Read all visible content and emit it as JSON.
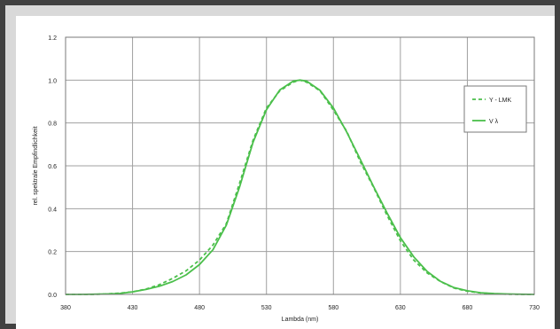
{
  "chart_data": {
    "type": "line",
    "title": "",
    "xlabel": "Lambda (nm)",
    "ylabel": "rel. spektrale Empfindlichkeit",
    "xlim": [
      380,
      730
    ],
    "ylim": [
      0,
      1.2
    ],
    "x_ticks": [
      "380",
      "430",
      "480",
      "530",
      "580",
      "630",
      "680",
      "730"
    ],
    "y_ticks": [
      "0.0",
      "0.2",
      "0.4",
      "0.6",
      "0.8",
      "1.0",
      "1.2"
    ],
    "grid": true,
    "legend_position": "right",
    "colors": {
      "line": "#4bbf4b",
      "grid": "#a0a0a0",
      "axis": "#7a7a7a"
    },
    "series": [
      {
        "name": "Y - LMK",
        "style": "dashed",
        "x": [
          380,
          390,
          400,
          410,
          420,
          430,
          440,
          450,
          460,
          470,
          480,
          490,
          500,
          510,
          520,
          530,
          540,
          550,
          555,
          560,
          570,
          580,
          590,
          600,
          610,
          620,
          630,
          640,
          650,
          660,
          670,
          680,
          690,
          700,
          710,
          720,
          730
        ],
        "values": [
          0.0,
          0.0,
          0.0,
          0.002,
          0.006,
          0.012,
          0.025,
          0.045,
          0.075,
          0.11,
          0.16,
          0.23,
          0.33,
          0.52,
          0.72,
          0.87,
          0.95,
          0.99,
          1.0,
          0.99,
          0.95,
          0.86,
          0.76,
          0.62,
          0.5,
          0.37,
          0.25,
          0.16,
          0.1,
          0.06,
          0.03,
          0.015,
          0.007,
          0.003,
          0.001,
          0.0,
          0.0
        ]
      },
      {
        "name": "V λ",
        "style": "solid",
        "x": [
          380,
          390,
          400,
          410,
          420,
          430,
          440,
          450,
          460,
          470,
          480,
          490,
          500,
          510,
          520,
          530,
          540,
          550,
          555,
          560,
          570,
          580,
          590,
          600,
          610,
          620,
          630,
          640,
          650,
          660,
          670,
          680,
          690,
          700,
          710,
          720,
          730
        ],
        "values": [
          0.0,
          0.0,
          0.001,
          0.002,
          0.004,
          0.012,
          0.023,
          0.038,
          0.06,
          0.091,
          0.139,
          0.208,
          0.323,
          0.503,
          0.71,
          0.862,
          0.954,
          0.995,
          1.0,
          0.995,
          0.952,
          0.87,
          0.757,
          0.631,
          0.503,
          0.381,
          0.265,
          0.175,
          0.107,
          0.061,
          0.032,
          0.017,
          0.008,
          0.004,
          0.002,
          0.001,
          0.0
        ]
      }
    ]
  }
}
